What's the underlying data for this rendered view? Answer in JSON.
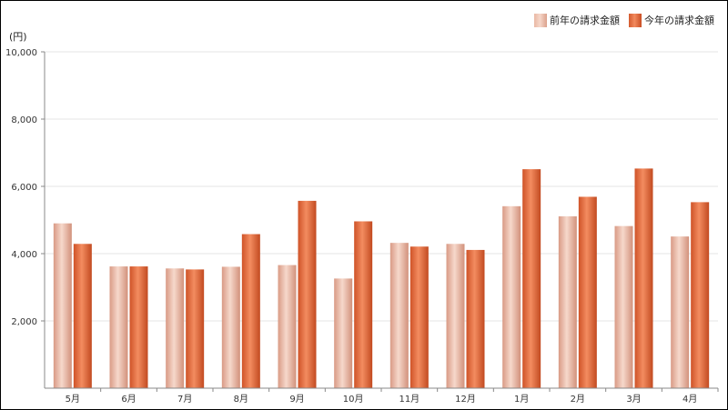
{
  "legend": {
    "previous_label": "前年の請求金額",
    "current_label": "今年の請求金額"
  },
  "colors": {
    "previous": "#e8b09c",
    "current": "#e6693d"
  },
  "chart_data": {
    "type": "bar",
    "ylabel": "(円)",
    "ylim": [
      0,
      10000
    ],
    "yticks": [
      2000,
      4000,
      6000,
      8000,
      10000
    ],
    "ytick_labels": [
      "2,000",
      "4,000",
      "6,000",
      "8,000",
      "10,000"
    ],
    "grid": true,
    "legend_position": "top-right",
    "categories": [
      "5月",
      "6月",
      "7月",
      "8月",
      "9月",
      "10月",
      "11月",
      "12月",
      "1月",
      "2月",
      "3月",
      "4月"
    ],
    "series": [
      {
        "name": "前年の請求金額",
        "values": [
          4900,
          3620,
          3560,
          3610,
          3660,
          3260,
          4320,
          4290,
          5410,
          5110,
          4820,
          4510
        ]
      },
      {
        "name": "今年の請求金額",
        "values": [
          4290,
          3620,
          3530,
          4580,
          5570,
          4960,
          4210,
          4110,
          6510,
          5690,
          6530,
          5530
        ]
      }
    ]
  }
}
